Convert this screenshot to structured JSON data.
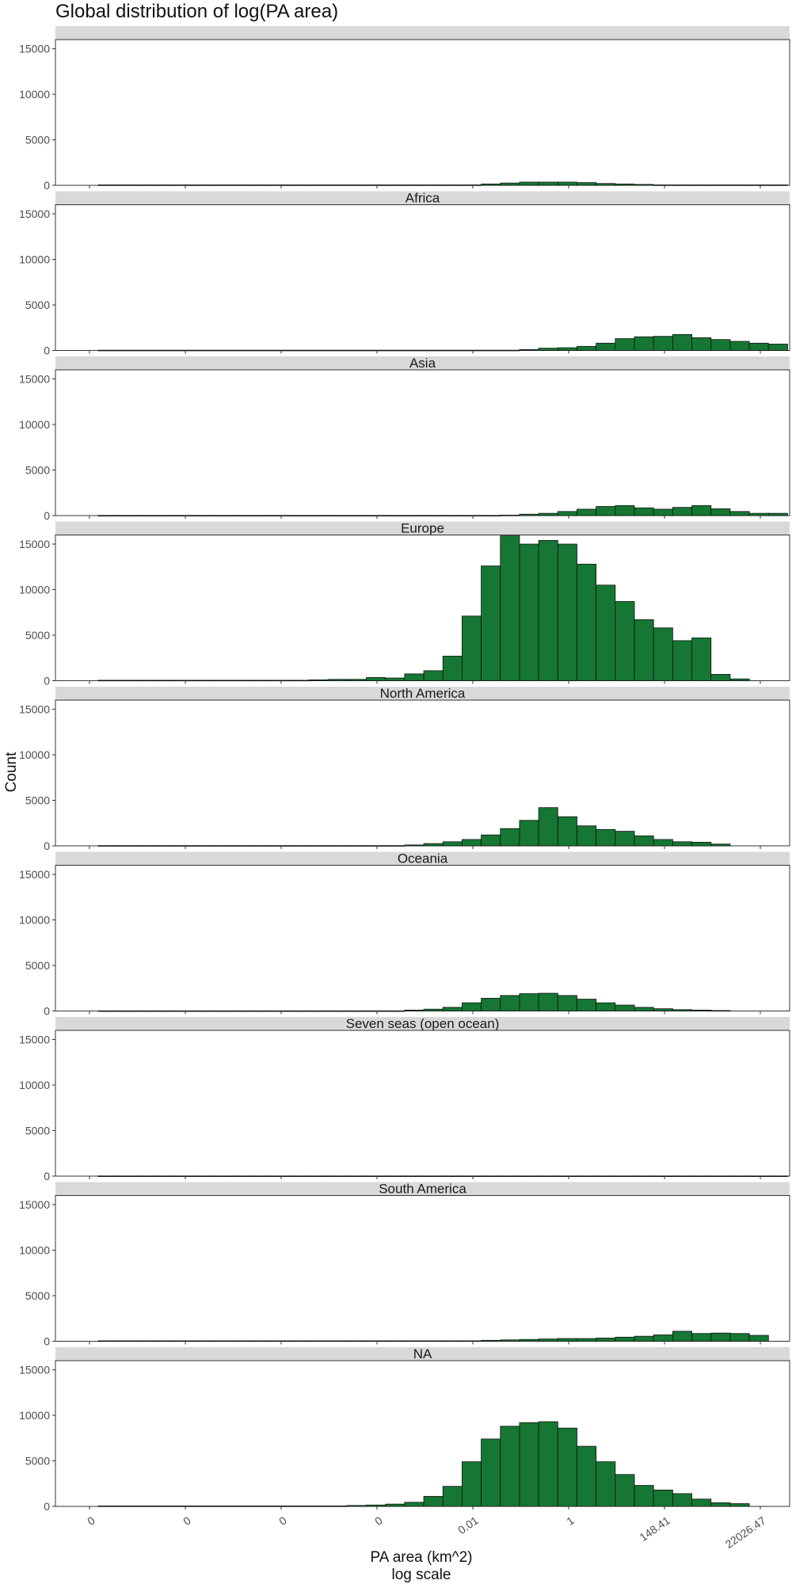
{
  "chart_data": {
    "type": "bar",
    "title": "Global distribution of log(PA area)",
    "xlabel": "PA area (km^2)",
    "xlabel_sub": "log scale",
    "ylabel": "Count",
    "ylim": [
      0,
      16000
    ],
    "y_ticks": [
      0,
      5000,
      10000,
      15000
    ],
    "x_tick_labels": [
      "0",
      "0",
      "0",
      "0",
      "0.01",
      "1",
      "148.41",
      "22026.47"
    ],
    "bar_color": "#157733",
    "bar_outline": "#111111",
    "panels": [
      {
        "name": "",
        "values": [
          50,
          50,
          50,
          50,
          50,
          50,
          50,
          50,
          50,
          50,
          50,
          50,
          50,
          50,
          50,
          50,
          50,
          50,
          50,
          50,
          150,
          250,
          350,
          350,
          350,
          300,
          200,
          150,
          100,
          50,
          50,
          50,
          50,
          50,
          50,
          50
        ]
      },
      {
        "name": "Africa",
        "values": [
          30,
          30,
          30,
          30,
          30,
          30,
          30,
          30,
          30,
          30,
          30,
          30,
          30,
          30,
          30,
          30,
          30,
          30,
          30,
          30,
          30,
          30,
          100,
          250,
          300,
          450,
          800,
          1300,
          1500,
          1550,
          1750,
          1400,
          1200,
          1000,
          800,
          700
        ]
      },
      {
        "name": "Asia",
        "values": [
          20,
          20,
          20,
          20,
          20,
          20,
          20,
          20,
          20,
          20,
          20,
          20,
          20,
          20,
          20,
          20,
          20,
          20,
          20,
          20,
          20,
          50,
          150,
          250,
          450,
          700,
          1000,
          1100,
          850,
          700,
          900,
          1100,
          750,
          450,
          250,
          250
        ]
      },
      {
        "name": "Europe",
        "values": [
          50,
          50,
          50,
          50,
          50,
          50,
          50,
          50,
          50,
          50,
          50,
          100,
          150,
          150,
          350,
          300,
          750,
          1100,
          2700,
          7100,
          12600,
          15900,
          15000,
          15400,
          15000,
          12800,
          10500,
          8700,
          6700,
          5800,
          4400,
          4700,
          700,
          200
        ]
      },
      {
        "name": "North America",
        "values": [
          30,
          30,
          30,
          30,
          30,
          30,
          30,
          30,
          30,
          30,
          30,
          30,
          30,
          30,
          30,
          30,
          100,
          250,
          450,
          700,
          1200,
          1900,
          2800,
          4200,
          3200,
          2200,
          1800,
          1600,
          1100,
          700,
          450,
          400,
          200
        ]
      },
      {
        "name": "Oceania",
        "values": [
          20,
          20,
          20,
          20,
          20,
          20,
          20,
          20,
          20,
          20,
          20,
          20,
          20,
          20,
          20,
          20,
          100,
          200,
          400,
          900,
          1400,
          1700,
          1900,
          1950,
          1700,
          1300,
          900,
          650,
          400,
          250,
          150,
          100,
          50
        ]
      },
      {
        "name": "Seven seas (open ocean)",
        "values": [
          20,
          20,
          20,
          20,
          20,
          20,
          20,
          20,
          20,
          20,
          20,
          20,
          20,
          20,
          20,
          20,
          20,
          20,
          20,
          20,
          20,
          20,
          20,
          20,
          20,
          20,
          20,
          20,
          20,
          20,
          20,
          20,
          20,
          20,
          20,
          20
        ]
      },
      {
        "name": "South America",
        "values": [
          50,
          50,
          50,
          50,
          50,
          50,
          50,
          50,
          50,
          50,
          50,
          50,
          50,
          50,
          50,
          50,
          50,
          50,
          50,
          50,
          100,
          150,
          200,
          250,
          300,
          300,
          350,
          450,
          550,
          700,
          1100,
          850,
          900,
          850,
          650
        ]
      },
      {
        "name": "NA",
        "values": [
          50,
          50,
          50,
          50,
          50,
          50,
          50,
          50,
          50,
          50,
          50,
          50,
          50,
          100,
          150,
          250,
          450,
          1100,
          2200,
          4900,
          7400,
          8800,
          9200,
          9300,
          8600,
          6600,
          4900,
          3500,
          2300,
          1800,
          1400,
          800,
          400,
          300
        ]
      }
    ]
  }
}
